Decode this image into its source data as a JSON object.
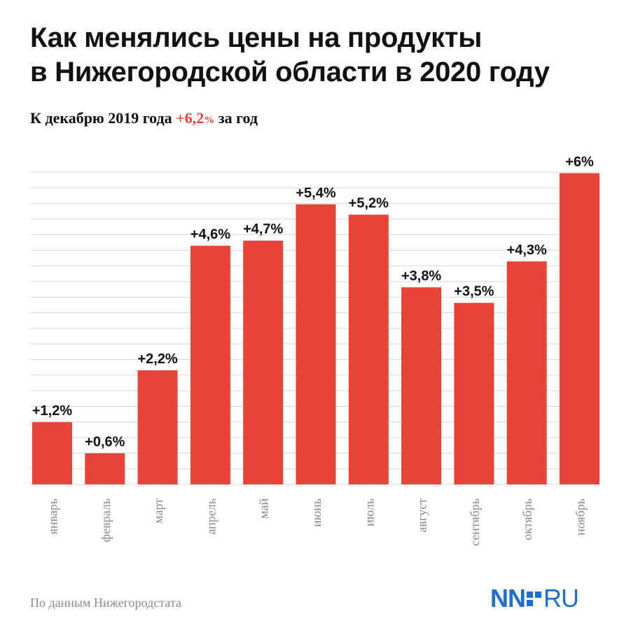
{
  "title_line1": "Как менялись цены на продукты",
  "title_line2": "в Нижегородской области в 2020 году",
  "subtitle": {
    "prefix": "К декабрю 2019 года ",
    "value": "+6,2",
    "unit": "%",
    "suffix": " за год"
  },
  "source": "По данным Нижегородстата",
  "logo": {
    "left": "NN",
    "right": "RU"
  },
  "colors": {
    "bar": "#e84336",
    "accent": "#e84336",
    "grid": "#d7d7d7",
    "logo": "#1f6fd1"
  },
  "chart_data": {
    "type": "bar",
    "categories": [
      "январь",
      "февраль",
      "март",
      "апрель",
      "май",
      "июнь",
      "июль",
      "август",
      "сентябрь",
      "октябрь",
      "ноябрь"
    ],
    "values": [
      1.2,
      0.6,
      2.2,
      4.6,
      4.7,
      5.4,
      5.2,
      3.8,
      3.5,
      4.3,
      6
    ],
    "data_labels": [
      "+1,2%",
      "+0,6%",
      "+2,2%",
      "+4,6%",
      "+4,7%",
      "+5,4%",
      "+5,2%",
      "+3,8%",
      "+3,5%",
      "+4,3%",
      "+6%"
    ],
    "ylim": [
      0,
      6
    ],
    "grid": true,
    "xlabel": "",
    "ylabel": ""
  }
}
